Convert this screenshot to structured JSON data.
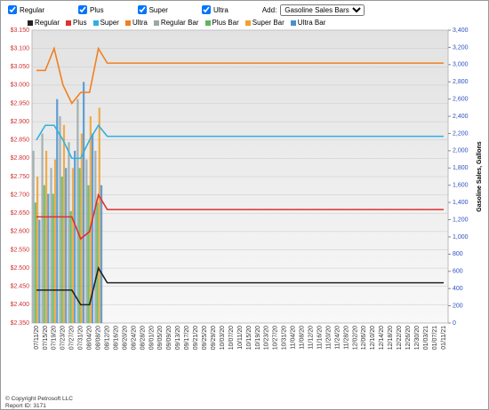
{
  "controls": {
    "checkboxes": [
      "Regular",
      "Plus",
      "Super",
      "Ultra"
    ],
    "add_label": "Add:",
    "add_select": "Gasoline Sales Bars"
  },
  "footer": {
    "copyright": "© Copyright Petrosoft LLC",
    "report": "Report ID: 3171"
  },
  "chart_data": {
    "type": "line",
    "y2_label": "Gasoline Sales, Gallons",
    "grid": true,
    "categories": [
      "07/11/20",
      "07/15/20",
      "07/19/20",
      "07/23/20",
      "07/27/20",
      "07/31/20",
      "08/04/20",
      "08/08/20",
      "08/12/20",
      "08/16/20",
      "08/20/20",
      "08/24/20",
      "08/28/20",
      "09/01/20",
      "09/05/20",
      "09/09/20",
      "09/13/20",
      "09/17/20",
      "09/21/20",
      "09/25/20",
      "09/29/20",
      "10/03/20",
      "10/07/20",
      "10/11/20",
      "10/15/20",
      "10/19/20",
      "10/23/20",
      "10/27/20",
      "10/31/20",
      "11/04/20",
      "11/08/20",
      "11/12/20",
      "11/16/20",
      "11/20/20",
      "11/24/20",
      "11/28/20",
      "12/02/20",
      "12/06/20",
      "12/10/20",
      "12/14/20",
      "12/18/20",
      "12/22/20",
      "12/26/20",
      "12/30/20",
      "01/03/21",
      "01/07/21",
      "01/11/21"
    ],
    "ylim": [
      2.35,
      3.15
    ],
    "yticks": [
      {
        "value": 2.35,
        "label": "$2.350"
      },
      {
        "value": 2.4,
        "label": "$2.400"
      },
      {
        "value": 2.45,
        "label": "$2.450"
      },
      {
        "value": 2.5,
        "label": "$2.500"
      },
      {
        "value": 2.55,
        "label": "$2.550"
      },
      {
        "value": 2.6,
        "label": "$2.600"
      },
      {
        "value": 2.65,
        "label": "$2.650"
      },
      {
        "value": 2.7,
        "label": "$2.700"
      },
      {
        "value": 2.75,
        "label": "$2.750"
      },
      {
        "value": 2.8,
        "label": "$2.800"
      },
      {
        "value": 2.85,
        "label": "$2.850"
      },
      {
        "value": 2.9,
        "label": "$2.900"
      },
      {
        "value": 2.95,
        "label": "$2.950"
      },
      {
        "value": 3.0,
        "label": "$3.000"
      },
      {
        "value": 3.05,
        "label": "$3.050"
      },
      {
        "value": 3.1,
        "label": "$3.100"
      },
      {
        "value": 3.15,
        "label": "$3.150"
      }
    ],
    "y2lim": [
      0,
      3400
    ],
    "y2ticks": [
      0,
      200,
      400,
      600,
      800,
      {
        "value": 1000,
        "label": "1,000"
      },
      {
        "value": 1200,
        "label": "1,200"
      },
      {
        "value": 1400,
        "label": "1,400"
      },
      {
        "value": 1600,
        "label": "1,600"
      },
      {
        "value": 1800,
        "label": "1,800"
      },
      {
        "value": 2000,
        "label": "2,000"
      },
      {
        "value": 2200,
        "label": "2,200"
      },
      {
        "value": 2400,
        "label": "2,400"
      },
      {
        "value": 2600,
        "label": "2,600"
      },
      {
        "value": 2800,
        "label": "2,800"
      },
      {
        "value": 3000,
        "label": "3,000"
      },
      {
        "value": 3200,
        "label": "3,200"
      },
      {
        "value": 3400,
        "label": "3,400"
      }
    ],
    "series": [
      {
        "name": "Regular",
        "color": "#222222",
        "values": [
          2.44,
          2.44,
          2.44,
          2.44,
          2.44,
          2.4,
          2.4,
          2.5,
          2.46,
          2.46,
          2.46,
          2.46,
          2.46,
          2.46,
          2.46,
          2.46,
          2.46,
          2.46,
          2.46,
          2.46,
          2.46,
          2.46,
          2.46,
          2.46,
          2.46,
          2.46,
          2.46,
          2.46,
          2.46,
          2.46,
          2.46,
          2.46,
          2.46,
          2.46,
          2.46,
          2.46,
          2.46,
          2.46,
          2.46,
          2.46,
          2.46,
          2.46,
          2.46,
          2.46,
          2.46,
          2.46,
          2.46
        ]
      },
      {
        "name": "Plus",
        "color": "#e03030",
        "values": [
          2.64,
          2.64,
          2.64,
          2.64,
          2.64,
          2.58,
          2.6,
          2.7,
          2.66,
          2.66,
          2.66,
          2.66,
          2.66,
          2.66,
          2.66,
          2.66,
          2.66,
          2.66,
          2.66,
          2.66,
          2.66,
          2.66,
          2.66,
          2.66,
          2.66,
          2.66,
          2.66,
          2.66,
          2.66,
          2.66,
          2.66,
          2.66,
          2.66,
          2.66,
          2.66,
          2.66,
          2.66,
          2.66,
          2.66,
          2.66,
          2.66,
          2.66,
          2.66,
          2.66,
          2.66,
          2.66,
          2.66
        ]
      },
      {
        "name": "Super",
        "color": "#30b0e0",
        "values": [
          2.85,
          2.89,
          2.89,
          2.85,
          2.8,
          2.8,
          2.85,
          2.89,
          2.86,
          2.86,
          2.86,
          2.86,
          2.86,
          2.86,
          2.86,
          2.86,
          2.86,
          2.86,
          2.86,
          2.86,
          2.86,
          2.86,
          2.86,
          2.86,
          2.86,
          2.86,
          2.86,
          2.86,
          2.86,
          2.86,
          2.86,
          2.86,
          2.86,
          2.86,
          2.86,
          2.86,
          2.86,
          2.86,
          2.86,
          2.86,
          2.86,
          2.86,
          2.86,
          2.86,
          2.86,
          2.86,
          2.86
        ]
      },
      {
        "name": "Ultra",
        "color": "#f08020",
        "values": [
          3.04,
          3.04,
          3.1,
          3.0,
          2.95,
          2.98,
          2.98,
          3.1,
          3.06,
          3.06,
          3.06,
          3.06,
          3.06,
          3.06,
          3.06,
          3.06,
          3.06,
          3.06,
          3.06,
          3.06,
          3.06,
          3.06,
          3.06,
          3.06,
          3.06,
          3.06,
          3.06,
          3.06,
          3.06,
          3.06,
          3.06,
          3.06,
          3.06,
          3.06,
          3.06,
          3.06,
          3.06,
          3.06,
          3.06,
          3.06,
          3.06,
          3.06,
          3.06,
          3.06,
          3.06,
          3.06,
          3.06
        ]
      },
      {
        "name": "Regular Bar",
        "color": "#9aa8a8",
        "type": "bar",
        "axis": "y2",
        "values": [
          2000,
          2200,
          1800,
          2400,
          2100,
          2600,
          1900,
          2000,
          null,
          null,
          null,
          null,
          null,
          null,
          null,
          null,
          null,
          null,
          null,
          null,
          null,
          null,
          null,
          null,
          null,
          null,
          null,
          null,
          null,
          null,
          null,
          null,
          null,
          null,
          null,
          null,
          null,
          null,
          null,
          null,
          null,
          null,
          null,
          null,
          null,
          null,
          null
        ]
      },
      {
        "name": "Plus Bar",
        "color": "#5cb85c",
        "type": "bar",
        "axis": "y2",
        "values": [
          1400,
          1600,
          1500,
          1700,
          1300,
          1800,
          1600,
          1400,
          null,
          null,
          null,
          null,
          null,
          null,
          null,
          null,
          null,
          null,
          null,
          null,
          null,
          null,
          null,
          null,
          null,
          null,
          null,
          null,
          null,
          null,
          null,
          null,
          null,
          null,
          null,
          null,
          null,
          null,
          null,
          null,
          null,
          null,
          null,
          null,
          null,
          null,
          null
        ]
      },
      {
        "name": "Super Bar",
        "color": "#f0a030",
        "type": "bar",
        "axis": "y2",
        "values": [
          1700,
          2000,
          1900,
          2300,
          1800,
          2200,
          2400,
          2500,
          null,
          null,
          null,
          null,
          null,
          null,
          null,
          null,
          null,
          null,
          null,
          null,
          null,
          null,
          null,
          null,
          null,
          null,
          null,
          null,
          null,
          null,
          null,
          null,
          null,
          null,
          null,
          null,
          null,
          null,
          null,
          null,
          null,
          null,
          null,
          null,
          null,
          null,
          null
        ]
      },
      {
        "name": "Ultra Bar",
        "color": "#4a90d0",
        "type": "bar",
        "axis": "y2",
        "values": [
          1200,
          1500,
          2600,
          1800,
          2000,
          2800,
          2200,
          1600,
          null,
          null,
          null,
          null,
          null,
          null,
          null,
          null,
          null,
          null,
          null,
          null,
          null,
          null,
          null,
          null,
          null,
          null,
          null,
          null,
          null,
          null,
          null,
          null,
          null,
          null,
          null,
          null,
          null,
          null,
          null,
          null,
          null,
          null,
          null,
          null,
          null,
          null,
          null
        ]
      }
    ]
  }
}
